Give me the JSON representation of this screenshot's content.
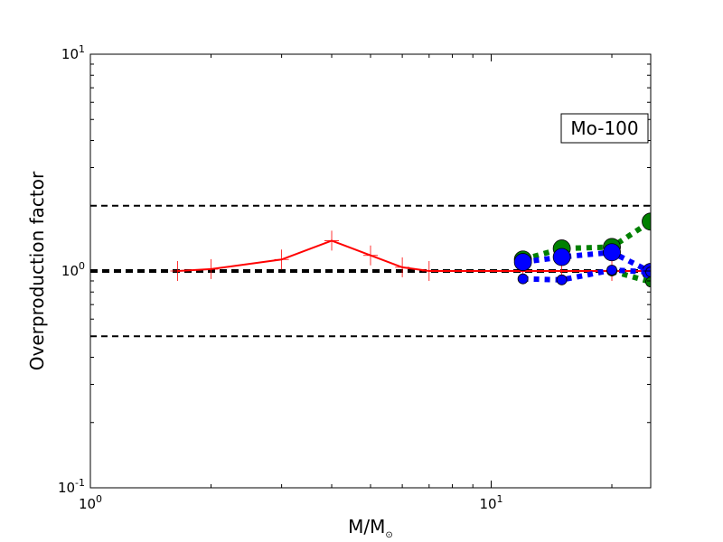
{
  "chart_data": {
    "type": "line",
    "title": "",
    "xlabel": "M/M",
    "xlabel_sub": "⊙",
    "ylabel": "Overproduction factor",
    "xscale": "log",
    "yscale": "log",
    "xlim": [
      1,
      25
    ],
    "ylim": [
      0.1,
      10
    ],
    "grid": false,
    "annotation": "Mo-100",
    "x_ticks": [
      {
        "base": "10",
        "exp": "0",
        "value": 1
      },
      {
        "base": "10",
        "exp": "1",
        "value": 10
      }
    ],
    "y_ticks": [
      {
        "base": "10",
        "exp": "-1",
        "value": 0.1
      },
      {
        "base": "10",
        "exp": "0",
        "value": 1
      },
      {
        "base": "10",
        "exp": "1",
        "value": 10
      }
    ],
    "reference_lines": [
      {
        "y": 2.0,
        "style": "dashed",
        "width": 2
      },
      {
        "y": 1.0,
        "style": "dashed",
        "width": 4
      },
      {
        "y": 0.5,
        "style": "dashed",
        "width": 2
      }
    ],
    "series": [
      {
        "color": "#ff0000",
        "style": "solid",
        "marker": "plus",
        "x": [
          1.65,
          2.0,
          3.0,
          4.0,
          5.0,
          6.0,
          7.0,
          12.0,
          15.0,
          20.0,
          25.0
        ],
        "y": [
          1.0,
          1.02,
          1.13,
          1.38,
          1.18,
          1.04,
          1.0,
          1.0,
          1.0,
          1.0,
          1.0
        ]
      },
      {
        "color": "#008000",
        "style": "dotted",
        "marker": "circle-large",
        "x": [
          12.0,
          15.0,
          20.0,
          25.0
        ],
        "y": [
          1.13,
          1.27,
          1.29,
          1.69
        ]
      },
      {
        "color": "#0000ff",
        "style": "dotted",
        "marker": "circle-large",
        "x": [
          12.0,
          15.0,
          20.0,
          25.0
        ],
        "y": [
          1.1,
          1.16,
          1.22,
          0.99
        ]
      },
      {
        "color": "#008000",
        "style": "dotted",
        "marker": "circle-small",
        "x": [
          20.0,
          25.0
        ],
        "y": [
          1.0,
          0.89
        ]
      },
      {
        "color": "#0000ff",
        "style": "dotted",
        "marker": "circle-small",
        "x": [
          12.0,
          15.0,
          20.0,
          25.0
        ],
        "y": [
          0.92,
          0.91,
          1.01,
          0.99
        ]
      }
    ]
  }
}
